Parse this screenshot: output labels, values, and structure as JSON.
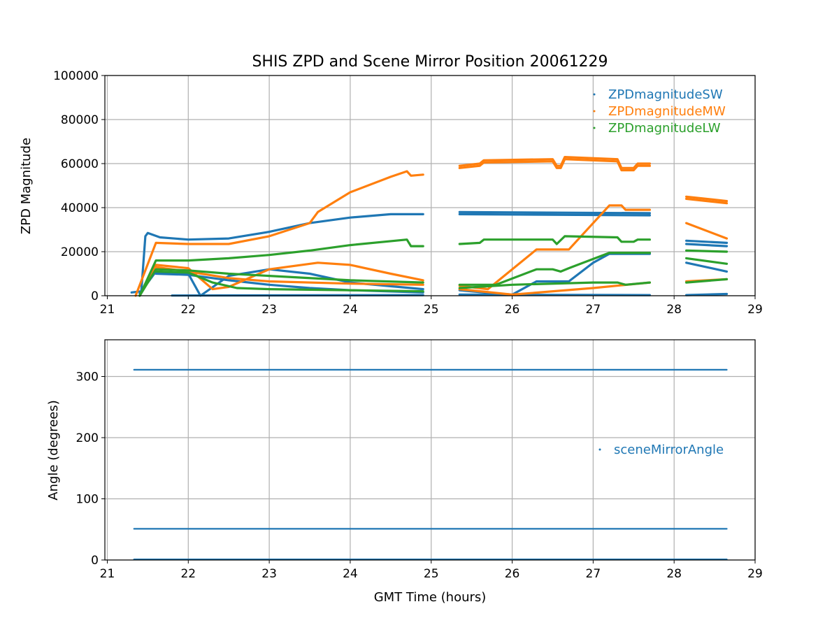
{
  "chart_data": [
    {
      "type": "scatter",
      "title": "SHIS ZPD and Scene Mirror Position 20061229",
      "xlabel": "",
      "ylabel": "ZPD Magnitude",
      "xlim": [
        20.97,
        29
      ],
      "ylim": [
        0,
        100000
      ],
      "xticks": [
        "21",
        "22",
        "23",
        "24",
        "25",
        "26",
        "27",
        "28",
        "29"
      ],
      "yticks": [
        "0",
        "20000",
        "40000",
        "60000",
        "80000",
        "100000"
      ],
      "grid": true,
      "legend_position": "top-right",
      "series": [
        {
          "name": "ZPDmagnitudeSW",
          "color": "#1f77b4",
          "traces": [
            [
              [
                21.3,
                1500
              ],
              [
                21.42,
                2000
              ],
              [
                21.47,
                27000
              ],
              [
                21.5,
                28500
              ],
              [
                21.65,
                26500
              ],
              [
                22,
                25500
              ],
              [
                22.5,
                26000
              ],
              [
                23,
                29000
              ],
              [
                23.5,
                33000
              ],
              [
                24,
                35500
              ],
              [
                24.5,
                37000
              ],
              [
                24.9,
                37000
              ]
            ],
            [
              [
                21.4,
                1000
              ],
              [
                21.6,
                11000
              ],
              [
                22,
                10000
              ],
              [
                22.15,
                0
              ],
              [
                22.5,
                9000
              ],
              [
                23,
                12000
              ],
              [
                23.5,
                10000
              ],
              [
                24,
                6000
              ],
              [
                24.9,
                3000
              ]
            ],
            [
              [
                21.6,
                10000
              ],
              [
                22,
                9500
              ],
              [
                22.5,
                7000
              ],
              [
                23,
                5000
              ],
              [
                23.5,
                3500
              ],
              [
                24,
                2500
              ],
              [
                24.9,
                1500
              ]
            ],
            [
              [
                21.8,
                100
              ],
              [
                24.9,
                300
              ]
            ],
            [
              [
                25.35,
                38000
              ],
              [
                27.7,
                37500
              ]
            ],
            [
              [
                25.35,
                37000
              ],
              [
                27.7,
                36500
              ]
            ],
            [
              [
                25.35,
                2500
              ],
              [
                25.8,
                1000
              ],
              [
                26,
                500
              ],
              [
                26.3,
                6500
              ],
              [
                26.7,
                6500
              ],
              [
                27,
                15000
              ],
              [
                27.2,
                19000
              ],
              [
                27.7,
                19000
              ]
            ],
            [
              [
                25.35,
                500
              ],
              [
                27.7,
                300
              ]
            ],
            [
              [
                28.15,
                25000
              ],
              [
                28.65,
                24000
              ]
            ],
            [
              [
                28.15,
                23500
              ],
              [
                28.65,
                22500
              ]
            ],
            [
              [
                28.15,
                15000
              ],
              [
                28.65,
                11000
              ]
            ],
            [
              [
                28.15,
                300
              ],
              [
                28.65,
                800
              ]
            ]
          ]
        },
        {
          "name": "ZPDmagnitudeMW",
          "color": "#ff7f0e",
          "traces": [
            [
              [
                21.35,
                0
              ],
              [
                21.6,
                24000
              ],
              [
                22,
                23500
              ],
              [
                22.5,
                23500
              ],
              [
                23,
                27000
              ],
              [
                23.5,
                33000
              ],
              [
                23.6,
                38000
              ],
              [
                24,
                47000
              ],
              [
                24.5,
                54000
              ],
              [
                24.7,
                56500
              ],
              [
                24.75,
                54500
              ],
              [
                24.9,
                55000
              ]
            ],
            [
              [
                21.4,
                0
              ],
              [
                21.6,
                14000
              ],
              [
                22,
                12500
              ],
              [
                22.3,
                3000
              ],
              [
                22.5,
                4000
              ],
              [
                23,
                12000
              ],
              [
                23.6,
                15000
              ],
              [
                24,
                14000
              ],
              [
                24.5,
                10000
              ],
              [
                24.9,
                7000
              ]
            ],
            [
              [
                21.6,
                13000
              ],
              [
                22,
                11000
              ],
              [
                22.5,
                8000
              ],
              [
                23,
                6500
              ],
              [
                24,
                5500
              ],
              [
                24.9,
                5000
              ]
            ],
            [
              [
                25.35,
                59000
              ],
              [
                25.6,
                60000
              ],
              [
                25.65,
                61500
              ],
              [
                26.5,
                62000
              ],
              [
                26.55,
                59000
              ],
              [
                26.6,
                59000
              ],
              [
                26.65,
                63000
              ],
              [
                27.3,
                62000
              ],
              [
                27.35,
                58000
              ],
              [
                27.5,
                58000
              ],
              [
                27.55,
                60000
              ],
              [
                27.7,
                60000
              ]
            ],
            [
              [
                25.35,
                58000
              ],
              [
                25.6,
                59000
              ],
              [
                25.65,
                60500
              ],
              [
                26.5,
                61000
              ],
              [
                26.55,
                58000
              ],
              [
                26.6,
                58000
              ],
              [
                26.65,
                62000
              ],
              [
                27.3,
                61000
              ],
              [
                27.35,
                57000
              ],
              [
                27.5,
                57000
              ],
              [
                27.55,
                59000
              ],
              [
                27.7,
                59000
              ]
            ],
            [
              [
                25.35,
                4500
              ],
              [
                25.7,
                3000
              ],
              [
                26.3,
                21000
              ],
              [
                26.7,
                21000
              ],
              [
                27.2,
                41000
              ],
              [
                27.35,
                41000
              ],
              [
                27.4,
                39000
              ],
              [
                27.7,
                39000
              ]
            ],
            [
              [
                25.35,
                3000
              ],
              [
                26,
                500
              ],
              [
                27,
                3500
              ],
              [
                27.7,
                6000
              ]
            ],
            [
              [
                28.15,
                45000
              ],
              [
                28.65,
                43000
              ]
            ],
            [
              [
                28.15,
                44000
              ],
              [
                28.65,
                42000
              ]
            ],
            [
              [
                28.15,
                33000
              ],
              [
                28.65,
                26000
              ]
            ],
            [
              [
                28.15,
                6500
              ],
              [
                28.65,
                7500
              ]
            ]
          ]
        },
        {
          "name": "ZPDmagnitudeLW",
          "color": "#2ca02c",
          "traces": [
            [
              [
                21.4,
                0
              ],
              [
                21.6,
                16000
              ],
              [
                22,
                16000
              ],
              [
                22.5,
                17000
              ],
              [
                23,
                18500
              ],
              [
                23.5,
                20500
              ],
              [
                24,
                23000
              ],
              [
                24.7,
                25500
              ],
              [
                24.75,
                22500
              ],
              [
                24.9,
                22500
              ]
            ],
            [
              [
                21.4,
                0
              ],
              [
                21.6,
                12000
              ],
              [
                22,
                11500
              ],
              [
                22.5,
                10000
              ],
              [
                23,
                9000
              ],
              [
                24,
                7000
              ],
              [
                24.9,
                6000
              ]
            ],
            [
              [
                21.6,
                11000
              ],
              [
                22,
                10500
              ],
              [
                22.3,
                6000
              ],
              [
                22.6,
                3500
              ],
              [
                23,
                3000
              ],
              [
                24,
                2500
              ],
              [
                24.9,
                2000
              ]
            ],
            [
              [
                25.35,
                23500
              ],
              [
                25.6,
                24000
              ],
              [
                25.65,
                25500
              ],
              [
                26.5,
                25500
              ],
              [
                26.55,
                23500
              ],
              [
                26.65,
                27000
              ],
              [
                27.3,
                26500
              ],
              [
                27.35,
                24500
              ],
              [
                27.5,
                24500
              ],
              [
                27.55,
                25500
              ],
              [
                27.7,
                25500
              ]
            ],
            [
              [
                25.35,
                5000
              ],
              [
                25.8,
                5000
              ],
              [
                26.3,
                12000
              ],
              [
                26.5,
                12000
              ],
              [
                26.6,
                11000
              ],
              [
                26.7,
                12500
              ],
              [
                27.2,
                19500
              ],
              [
                27.7,
                19500
              ]
            ],
            [
              [
                25.35,
                3500
              ],
              [
                26,
                5000
              ],
              [
                27,
                6000
              ],
              [
                27.3,
                6000
              ],
              [
                27.4,
                5000
              ],
              [
                27.7,
                6000
              ]
            ],
            [
              [
                28.15,
                20500
              ],
              [
                28.65,
                20000
              ]
            ],
            [
              [
                28.15,
                17000
              ],
              [
                28.65,
                14500
              ]
            ],
            [
              [
                28.15,
                6000
              ],
              [
                28.65,
                7500
              ]
            ]
          ]
        }
      ]
    },
    {
      "type": "scatter",
      "title": "",
      "xlabel": "GMT Time (hours)",
      "ylabel": "Angle (degrees)",
      "xlim": [
        20.97,
        29
      ],
      "ylim": [
        0,
        360
      ],
      "xticks": [
        "21",
        "22",
        "23",
        "24",
        "25",
        "26",
        "27",
        "28",
        "29"
      ],
      "yticks": [
        "0",
        "100",
        "200",
        "300"
      ],
      "grid": true,
      "legend_position": "center-right",
      "series": [
        {
          "name": "sceneMirrorAngle",
          "color": "#1f77b4",
          "traces": [
            [
              [
                21.33,
                311
              ],
              [
                28.65,
                311
              ]
            ],
            [
              [
                21.33,
                51
              ],
              [
                28.65,
                51
              ]
            ],
            [
              [
                21.33,
                1
              ],
              [
                28.65,
                1
              ]
            ]
          ]
        }
      ]
    }
  ]
}
